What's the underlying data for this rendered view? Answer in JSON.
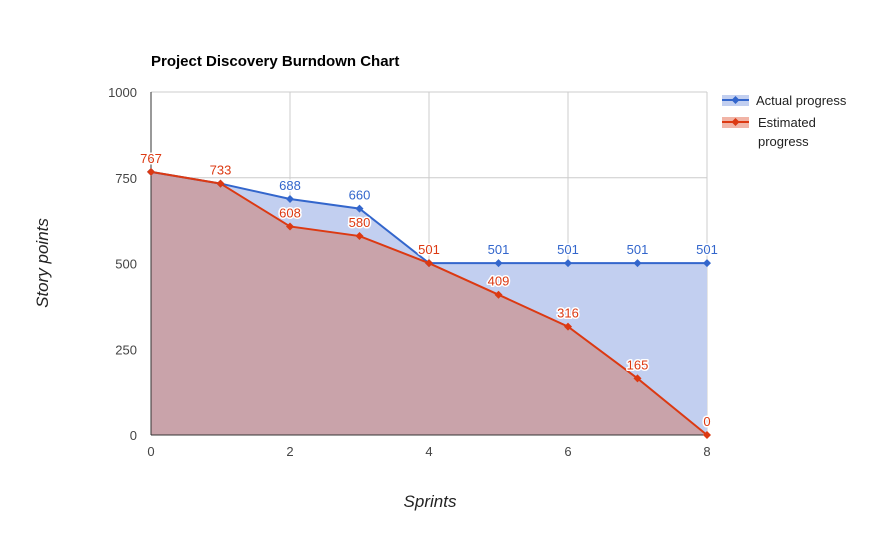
{
  "chart_data": {
    "type": "area",
    "title": "Project Discovery Burndown Chart",
    "xlabel": "Sprints",
    "ylabel": "Story points",
    "x": [
      0,
      1,
      2,
      3,
      4,
      5,
      6,
      7,
      8
    ],
    "xlim": [
      0,
      8
    ],
    "ylim": [
      0,
      1000
    ],
    "xticks": [
      0,
      2,
      4,
      6,
      8
    ],
    "yticks": [
      0,
      250,
      500,
      750,
      1000
    ],
    "grid": true,
    "legend_position": "right",
    "series": [
      {
        "name": "Actual progress",
        "color": "#3366cc",
        "fill": "#c2cff0",
        "values": [
          767,
          733,
          688,
          660,
          501,
          501,
          501,
          501,
          501
        ],
        "labels": [
          "",
          "",
          "688",
          "660",
          "",
          "501",
          "501",
          "501",
          "501"
        ]
      },
      {
        "name": "Estimated progress",
        "color": "#dc3912",
        "fill": "#c9a3aa",
        "values": [
          767,
          733,
          608,
          580,
          501,
          409,
          316,
          165,
          0
        ],
        "labels": [
          "767",
          "733",
          "608",
          "580",
          "501",
          "409",
          "316",
          "165",
          "0"
        ]
      }
    ]
  }
}
